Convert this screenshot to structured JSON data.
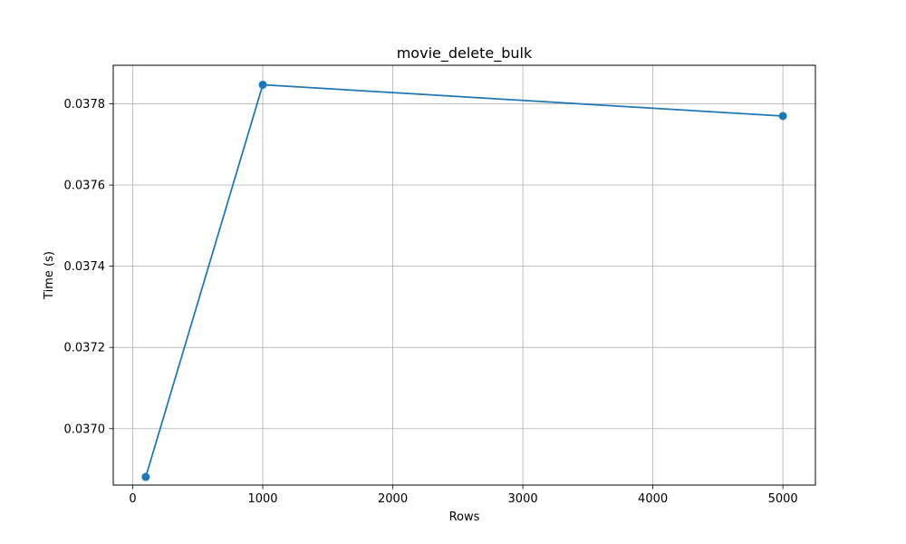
{
  "chart_data": {
    "type": "line",
    "title": "movie_delete_bulk",
    "xlabel": "Rows",
    "ylabel": "Time (s)",
    "xlim": [
      -150,
      5250
    ],
    "ylim": [
      0.036861,
      0.037895
    ],
    "x_ticks": [
      0,
      1000,
      2000,
      3000,
      4000,
      5000
    ],
    "x_tick_labels": [
      "0",
      "1000",
      "2000",
      "3000",
      "4000",
      "5000"
    ],
    "y_ticks": [
      0.037,
      0.0372,
      0.0374,
      0.0376,
      0.0378
    ],
    "y_tick_labels": [
      "0.0370",
      "0.0372",
      "0.0374",
      "0.0376",
      "0.0378"
    ],
    "grid": true,
    "series": [
      {
        "x": [
          100,
          1000,
          5000
        ],
        "values": [
          0.036881,
          0.037847,
          0.03777
        ],
        "color": "#1f77b4",
        "marker": "circle"
      }
    ]
  }
}
